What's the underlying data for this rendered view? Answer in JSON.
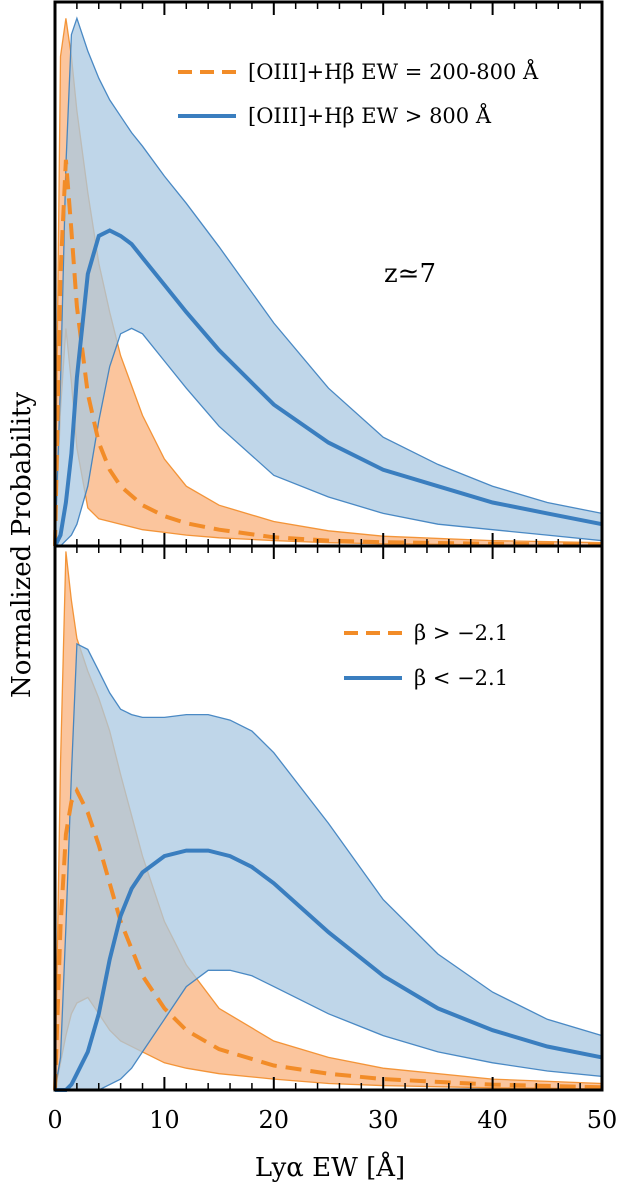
{
  "chart_data": {
    "type": "line",
    "xlabel": "Lyα EW [Å]",
    "ylabel": "Normalized Probability",
    "xlim": [
      0,
      50
    ],
    "xticks": [
      "0",
      "10",
      "20",
      "30",
      "40",
      "50"
    ],
    "x_minor_step": 2,
    "colors": {
      "orange": "#f28c28",
      "blue": "#3a7ebf",
      "orange_fill": "#f9b27c",
      "blue_fill": "#a9c8e2"
    },
    "panels": [
      {
        "annotation": "z≃7",
        "legend": [
          "[OIII]+Hβ EW = 200-800 Å",
          "[OIII]+Hβ EW > 800 Å"
        ],
        "ylim": [
          0,
          1
        ],
        "series": [
          {
            "name": "[OIII]+Hβ EW = 200-800 Å",
            "color": "orange",
            "style": "dashed",
            "x": [
              0,
              0.5,
              1,
              1.5,
              2,
              3,
              4,
              5,
              6,
              8,
              10,
              12,
              15,
              20,
              25,
              30,
              40,
              50
            ],
            "median": [
              0.0,
              0.5,
              0.71,
              0.58,
              0.44,
              0.28,
              0.19,
              0.14,
              0.11,
              0.075,
              0.055,
              0.042,
              0.03,
              0.016,
              0.01,
              0.007,
              0.004,
              0.002
            ],
            "upper": [
              0.0,
              0.9,
              0.97,
              0.9,
              0.8,
              0.65,
              0.52,
              0.43,
              0.35,
              0.24,
              0.16,
              0.11,
              0.075,
              0.045,
              0.028,
              0.018,
              0.01,
              0.006
            ],
            "lower": [
              0.0,
              0.25,
              0.4,
              0.3,
              0.18,
              0.07,
              0.05,
              0.045,
              0.04,
              0.03,
              0.025,
              0.02,
              0.015,
              0.01,
              0.006,
              0.004,
              0.002,
              0.001
            ]
          },
          {
            "name": "[OIII]+Hβ EW > 800 Å",
            "color": "blue",
            "style": "solid",
            "x": [
              0,
              0.5,
              1,
              1.5,
              2,
              3,
              4,
              5,
              6,
              7,
              8,
              10,
              12,
              15,
              20,
              25,
              30,
              35,
              40,
              45,
              50
            ],
            "median": [
              0.0,
              0.02,
              0.08,
              0.17,
              0.31,
              0.5,
              0.57,
              0.58,
              0.57,
              0.555,
              0.53,
              0.48,
              0.43,
              0.36,
              0.26,
              0.19,
              0.14,
              0.11,
              0.08,
              0.06,
              0.04
            ],
            "upper": [
              0.0,
              0.3,
              0.7,
              0.94,
              0.97,
              0.91,
              0.86,
              0.82,
              0.79,
              0.76,
              0.735,
              0.68,
              0.63,
              0.55,
              0.41,
              0.29,
              0.2,
              0.15,
              0.11,
              0.08,
              0.06
            ],
            "lower": [
              0.0,
              0.0,
              0.01,
              0.02,
              0.04,
              0.11,
              0.23,
              0.33,
              0.39,
              0.4,
              0.39,
              0.34,
              0.29,
              0.22,
              0.13,
              0.09,
              0.06,
              0.04,
              0.03,
              0.02,
              0.01
            ]
          }
        ]
      },
      {
        "legend": [
          "β > −2.1",
          "β < −2.1"
        ],
        "ylim": [
          0,
          1
        ],
        "series": [
          {
            "name": "β > −2.1",
            "color": "orange",
            "style": "dashed",
            "x": [
              0,
              0.5,
              1,
              1.5,
              2,
              3,
              4,
              5,
              6,
              8,
              10,
              12,
              15,
              20,
              25,
              30,
              40,
              50
            ],
            "median": [
              0.0,
              0.3,
              0.47,
              0.53,
              0.55,
              0.51,
              0.45,
              0.38,
              0.31,
              0.21,
              0.15,
              0.11,
              0.075,
              0.045,
              0.03,
              0.02,
              0.01,
              0.005
            ],
            "upper": [
              0.0,
              0.6,
              0.99,
              0.9,
              0.83,
              0.77,
              0.72,
              0.66,
              0.58,
              0.43,
              0.31,
              0.23,
              0.15,
              0.09,
              0.06,
              0.04,
              0.02,
              0.012
            ],
            "lower": [
              0.0,
              0.05,
              0.1,
              0.14,
              0.16,
              0.17,
              0.14,
              0.11,
              0.09,
              0.07,
              0.05,
              0.04,
              0.03,
              0.02,
              0.012,
              0.008,
              0.004,
              0.002
            ]
          },
          {
            "name": "β < −2.1",
            "color": "blue",
            "style": "solid",
            "x": [
              0,
              0.5,
              1,
              1.5,
              2,
              3,
              4,
              5,
              6,
              7,
              8,
              10,
              12,
              14,
              16,
              18,
              20,
              25,
              30,
              35,
              40,
              45,
              50
            ],
            "median": [
              0.0,
              0.0,
              0.0,
              0.01,
              0.03,
              0.07,
              0.14,
              0.24,
              0.32,
              0.37,
              0.4,
              0.43,
              0.44,
              0.44,
              0.43,
              0.41,
              0.38,
              0.29,
              0.21,
              0.15,
              0.11,
              0.08,
              0.06
            ],
            "upper": [
              0.0,
              0.06,
              0.3,
              0.58,
              0.82,
              0.81,
              0.77,
              0.73,
              0.7,
              0.69,
              0.685,
              0.685,
              0.69,
              0.69,
              0.68,
              0.66,
              0.62,
              0.49,
              0.35,
              0.25,
              0.18,
              0.13,
              0.1
            ],
            "lower": [
              0.0,
              0.0,
              0.0,
              0.0,
              0.0,
              0.0,
              0.0,
              0.01,
              0.02,
              0.04,
              0.07,
              0.13,
              0.19,
              0.22,
              0.22,
              0.21,
              0.19,
              0.14,
              0.1,
              0.07,
              0.05,
              0.035,
              0.025
            ]
          }
        ]
      }
    ]
  }
}
